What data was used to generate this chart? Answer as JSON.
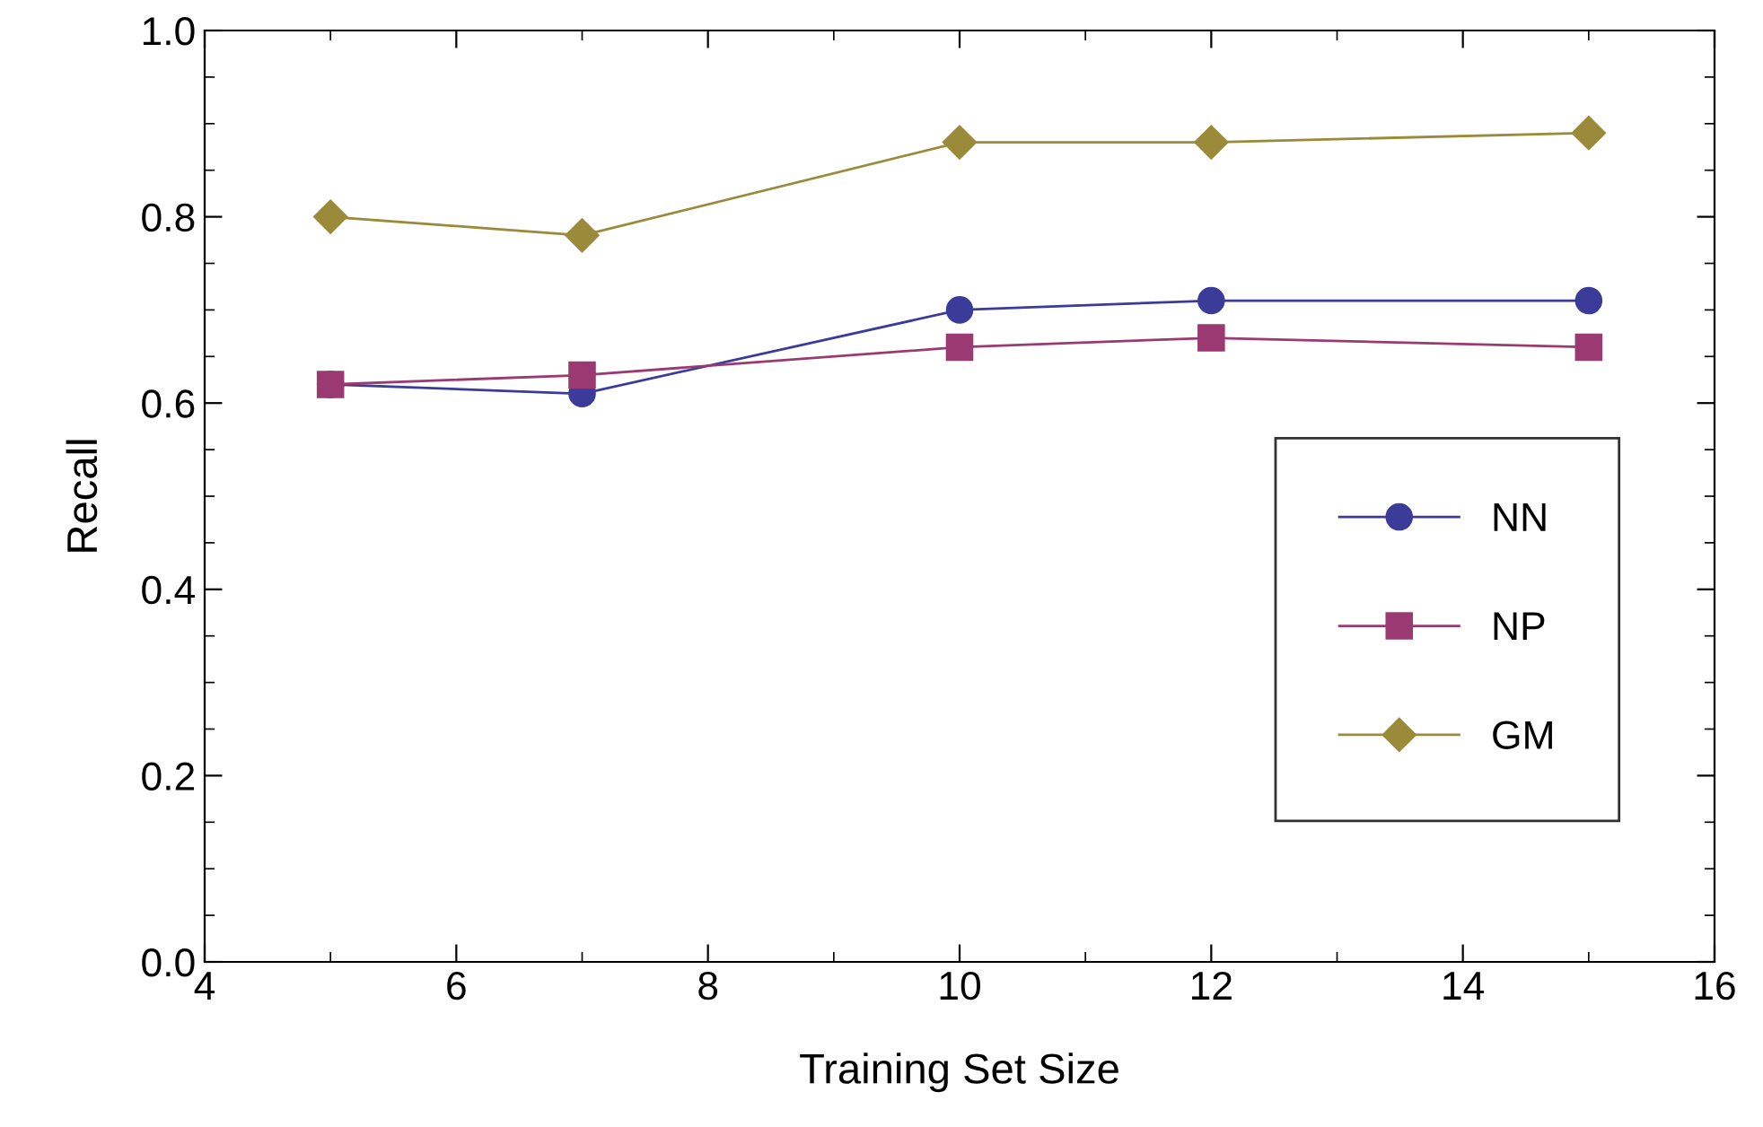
{
  "chart_data": {
    "type": "line",
    "xlabel": "Training Set Size",
    "ylabel": "Recall",
    "x": [
      5,
      7,
      10,
      12,
      15
    ],
    "series": [
      {
        "name": "NN",
        "color": "#3b3b9a",
        "marker": "circle",
        "values": [
          0.62,
          0.61,
          0.7,
          0.71,
          0.71
        ]
      },
      {
        "name": "NP",
        "color": "#9b3a72",
        "marker": "square",
        "values": [
          0.62,
          0.63,
          0.66,
          0.67,
          0.66
        ]
      },
      {
        "name": "GM",
        "color": "#9a8a3a",
        "marker": "diamond",
        "values": [
          0.8,
          0.78,
          0.88,
          0.88,
          0.89
        ]
      }
    ],
    "xlim": [
      4,
      16
    ],
    "xticks": [
      4,
      6,
      8,
      10,
      12,
      14,
      16
    ],
    "ylim": [
      0,
      1
    ],
    "yticks": [
      {
        "value": 0,
        "label": "0.0"
      },
      0.2,
      0.4,
      0.6,
      0.8,
      {
        "value": 1,
        "label": "1.0"
      }
    ],
    "grid": false,
    "legend": "lower right",
    "line_style": "solid"
  }
}
